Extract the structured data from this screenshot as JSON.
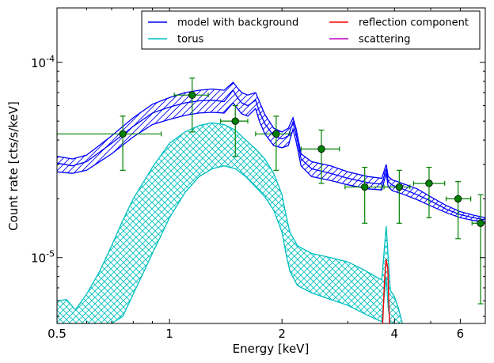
{
  "chart_data": {
    "type": "line",
    "xlabel": "Energy [keV]",
    "ylabel": "Count rate [cts/s/keV]",
    "x_scale": "log",
    "y_scale": "log",
    "xlim": [
      0.5,
      7.0
    ],
    "ylim": [
      4.6e-06,
      0.00019
    ],
    "x_ticks": [
      {
        "value": 0.5,
        "label": "0.5"
      },
      {
        "value": 1,
        "label": "1"
      },
      {
        "value": 2,
        "label": "2"
      },
      {
        "value": 4,
        "label": "4"
      },
      {
        "value": 6,
        "label": "6"
      }
    ],
    "y_ticks": [
      {
        "value": 1e-05,
        "label": "10",
        "exponent": "-5"
      },
      {
        "value": 0.0001,
        "label": "10",
        "exponent": "-4"
      }
    ],
    "grid": false,
    "legend": {
      "placement": "top-right",
      "entries": [
        {
          "label": "model with background",
          "color": "#0000ff"
        },
        {
          "label": "reflection component",
          "color": "#ff0000"
        },
        {
          "label": "torus",
          "color": "#00bfbf"
        },
        {
          "label": "scattering",
          "color": "#bf00bf"
        }
      ]
    },
    "series": [
      {
        "name": "model with background",
        "color": "#0000ff",
        "x": [
          0.5,
          0.55,
          0.6,
          0.7,
          0.8,
          0.9,
          1.0,
          1.1,
          1.2,
          1.3,
          1.4,
          1.48,
          1.52,
          1.56,
          1.62,
          1.7,
          1.74,
          1.8,
          1.9,
          2.0,
          2.08,
          2.14,
          2.18,
          2.25,
          2.4,
          2.7,
          3.0,
          3.4,
          3.7,
          3.8,
          3.85,
          3.95,
          4.2,
          4.6,
          5.0,
          5.5,
          6.0,
          6.5,
          7.0
        ],
        "upper": [
          3.3e-05,
          3.2e-05,
          3.35e-05,
          4.2e-05,
          5.2e-05,
          6.1e-05,
          6.6e-05,
          7e-05,
          7.2e-05,
          7.3e-05,
          7.2e-05,
          7.9e-05,
          7.4e-05,
          7e-05,
          6.8e-05,
          7e-05,
          6.3e-05,
          5.4e-05,
          4.6e-05,
          4.4e-05,
          4.6e-05,
          5.2e-05,
          4.6e-05,
          3.4e-05,
          3.1e-05,
          2.95e-05,
          2.75e-05,
          2.6e-05,
          2.55e-05,
          3e-05,
          2.6e-05,
          2.5e-05,
          2.4e-05,
          2.25e-05,
          2.05e-05,
          1.85e-05,
          1.72e-05,
          1.65e-05,
          1.6e-05
        ],
        "mid": [
          3.05e-05,
          2.95e-05,
          3.1e-05,
          3.85e-05,
          4.7e-05,
          5.5e-05,
          5.9e-05,
          6.2e-05,
          6.35e-05,
          6.4e-05,
          6.3e-05,
          7.2e-05,
          6.6e-05,
          6.2e-05,
          6e-05,
          6.4e-05,
          5.6e-05,
          4.85e-05,
          4.2e-05,
          4.05e-05,
          4.2e-05,
          4.95e-05,
          4.3e-05,
          3.2e-05,
          2.85e-05,
          2.7e-05,
          2.55e-05,
          2.42e-05,
          2.38e-05,
          2.85e-05,
          2.45e-05,
          2.35e-05,
          2.25e-05,
          2.1e-05,
          1.95e-05,
          1.77e-05,
          1.66e-05,
          1.6e-05,
          1.56e-05
        ],
        "lower": [
          2.75e-05,
          2.7e-05,
          2.8e-05,
          3.4e-05,
          4.15e-05,
          4.8e-05,
          5.1e-05,
          5.35e-05,
          5.5e-05,
          5.55e-05,
          5.5e-05,
          6.2e-05,
          5.8e-05,
          5.45e-05,
          5.3e-05,
          5.8e-05,
          5e-05,
          4.3e-05,
          3.75e-05,
          3.65e-05,
          3.75e-05,
          4.55e-05,
          3.95e-05,
          2.95e-05,
          2.6e-05,
          2.48e-05,
          2.36e-05,
          2.25e-05,
          2.22e-05,
          2.7e-05,
          2.3e-05,
          2.2e-05,
          2.12e-05,
          1.98e-05,
          1.84e-05,
          1.7e-05,
          1.6e-05,
          1.55e-05,
          1.52e-05
        ]
      },
      {
        "name": "torus",
        "color": "#00bfbf",
        "x": [
          0.5,
          0.53,
          0.56,
          0.6,
          0.65,
          0.7,
          0.75,
          0.8,
          0.9,
          1.0,
          1.1,
          1.2,
          1.3,
          1.4,
          1.5,
          1.6,
          1.7,
          1.8,
          1.9,
          2.0,
          2.05,
          2.1,
          2.2,
          2.4,
          2.7,
          3.0,
          3.3,
          3.6,
          3.7,
          3.8,
          3.85,
          3.9,
          4.0,
          4.1,
          4.2
        ],
        "upper": [
          6e-06,
          6.1e-06,
          5.4e-06,
          6.5e-06,
          8.5e-06,
          1.15e-05,
          1.55e-05,
          2e-05,
          2.9e-05,
          3.85e-05,
          4.4e-05,
          4.75e-05,
          4.9e-05,
          4.8e-05,
          4.5e-05,
          4e-05,
          3.6e-05,
          3.2e-05,
          2.7e-05,
          2.1e-05,
          1.65e-05,
          1.35e-05,
          1.15e-05,
          1.05e-05,
          1e-05,
          9.5e-06,
          8.7e-06,
          7.9e-06,
          7.7e-06,
          1.45e-05,
          1e-05,
          6.8e-06,
          6.3e-06,
          5.5e-06,
          4.6e-06
        ],
        "lower": [
          4.6e-06,
          4.6e-06,
          4.6e-06,
          4.6e-06,
          4.6e-06,
          4.6e-06,
          5e-06,
          6.5e-06,
          1.05e-05,
          1.6e-05,
          2.15e-05,
          2.6e-05,
          2.85e-05,
          2.95e-05,
          2.85e-05,
          2.6e-05,
          2.3e-05,
          2.05e-05,
          1.75e-05,
          1.35e-05,
          1.05e-05,
          8.5e-06,
          7.2e-06,
          6.6e-06,
          6.1e-06,
          5.7e-06,
          5.2e-06,
          4.8e-06,
          4.7e-06,
          8e-06,
          5.5e-06,
          4.6e-06,
          4.6e-06,
          4.6e-06,
          4.6e-06
        ]
      },
      {
        "name": "reflection component",
        "color": "#ff0000",
        "x": [
          3.72,
          3.76,
          3.8,
          3.84,
          3.88
        ],
        "y": [
          4.6e-06,
          7.5e-06,
          9.8e-06,
          8.8e-06,
          4.6e-06
        ]
      },
      {
        "name": "data",
        "color": "#008000",
        "points": [
          {
            "x": 0.75,
            "y": 4.3e-05,
            "xlo": 0.5,
            "xhi": 0.95,
            "ylo": 2.8e-05,
            "yhi": 5.3e-05
          },
          {
            "x": 1.15,
            "y": 6.8e-05,
            "xlo": 1.03,
            "xhi": 1.27,
            "ylo": 4.4e-05,
            "yhi": 8.3e-05
          },
          {
            "x": 1.5,
            "y": 5e-05,
            "xlo": 1.37,
            "xhi": 1.62,
            "ylo": 3.3e-05,
            "yhi": 6e-05
          },
          {
            "x": 1.93,
            "y": 4.3e-05,
            "xlo": 1.7,
            "xhi": 2.1,
            "ylo": 2.8e-05,
            "yhi": 5.3e-05
          },
          {
            "x": 2.55,
            "y": 3.6e-05,
            "xlo": 2.25,
            "xhi": 2.85,
            "ylo": 2.4e-05,
            "yhi": 4.5e-05
          },
          {
            "x": 3.33,
            "y": 2.3e-05,
            "xlo": 2.95,
            "xhi": 3.7,
            "ylo": 1.5e-05,
            "yhi": 2.9e-05
          },
          {
            "x": 4.12,
            "y": 2.3e-05,
            "xlo": 3.75,
            "xhi": 4.4,
            "ylo": 1.5e-05,
            "yhi": 2.8e-05
          },
          {
            "x": 4.95,
            "y": 2.4e-05,
            "xlo": 4.5,
            "xhi": 5.45,
            "ylo": 1.6e-05,
            "yhi": 2.9e-05
          },
          {
            "x": 5.92,
            "y": 2e-05,
            "xlo": 5.5,
            "xhi": 6.4,
            "ylo": 1.25e-05,
            "yhi": 2.45e-05
          },
          {
            "x": 6.8,
            "y": 1.5e-05,
            "xlo": 6.45,
            "xhi": 7.0,
            "ylo": 5.8e-06,
            "yhi": 2.1e-05
          }
        ]
      }
    ]
  }
}
